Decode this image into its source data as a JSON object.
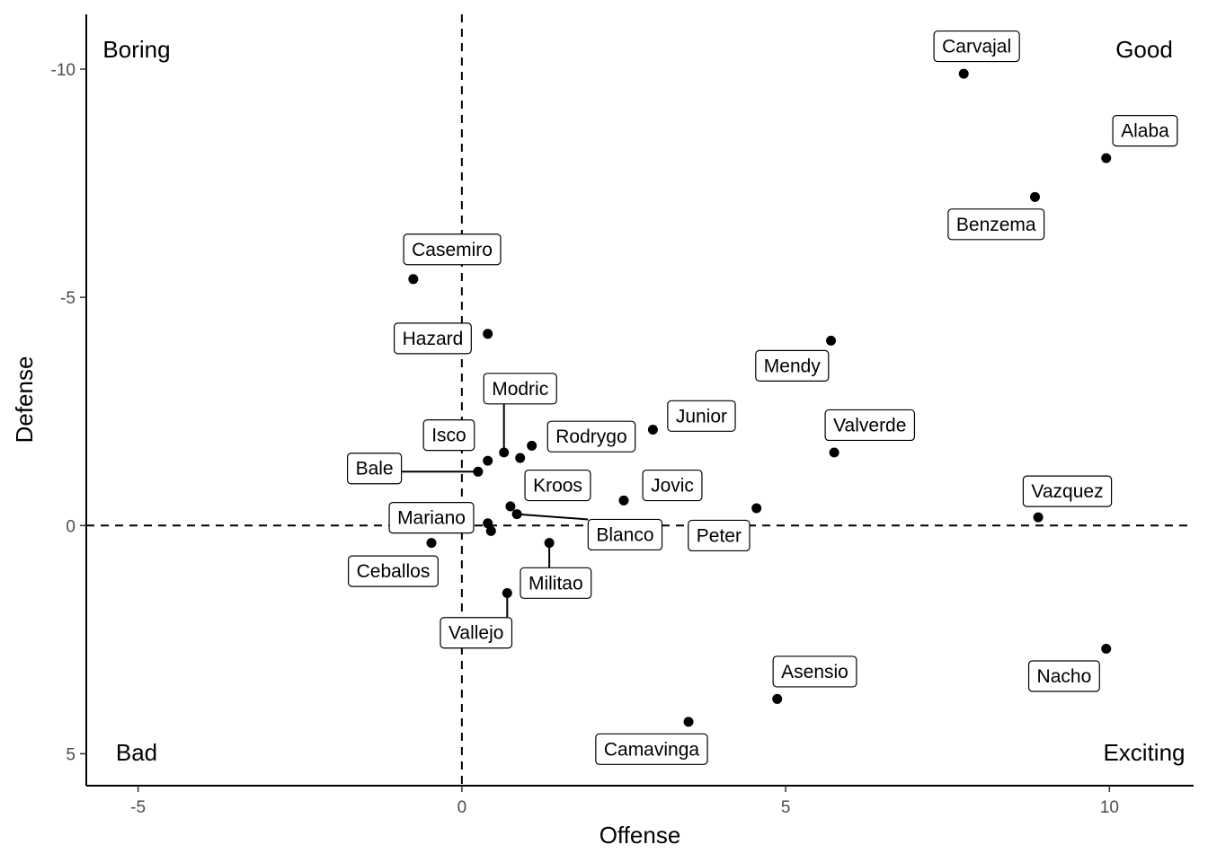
{
  "chart_data": {
    "type": "scatter",
    "xlabel": "Offense",
    "ylabel": "Defense",
    "xlim": [
      -5.8,
      11.3
    ],
    "ylim": [
      -11.2,
      5.7
    ],
    "y_reversed": true,
    "x_ticks": [
      -5,
      0,
      5,
      10
    ],
    "x_tick_labels": [
      "-5",
      "0",
      "5",
      "10"
    ],
    "y_ticks": [
      -10,
      -5,
      0,
      5
    ],
    "y_tick_labels": [
      "-10",
      "-5",
      "0",
      "5"
    ],
    "reference_lines": {
      "x": 0,
      "y": 0,
      "style": "dashed"
    },
    "grid": false,
    "quadrant_labels": {
      "top_left": "Boring",
      "top_right": "Good",
      "bottom_left": "Bad",
      "bottom_right": "Exciting"
    },
    "points": [
      {
        "name": "Carvajal",
        "x": 7.75,
        "y": -9.9,
        "label_x": 7.95,
        "label_y": -10.5
      },
      {
        "name": "Alaba",
        "x": 9.95,
        "y": -8.05,
        "label_x": 10.55,
        "label_y": -8.65
      },
      {
        "name": "Benzema",
        "x": 8.85,
        "y": -7.2,
        "label_x": 8.25,
        "label_y": -6.6
      },
      {
        "name": "Casemiro",
        "x": -0.75,
        "y": -5.4,
        "label_x": -0.15,
        "label_y": -6.05
      },
      {
        "name": "Hazard",
        "x": 0.4,
        "y": -4.2,
        "label_x": -0.45,
        "label_y": -4.1
      },
      {
        "name": "Mendy",
        "x": 5.7,
        "y": -4.05,
        "label_x": 5.1,
        "label_y": -3.5
      },
      {
        "name": "Modric",
        "x": 0.65,
        "y": -1.6,
        "label_x": 0.9,
        "label_y": -3.0,
        "leader": true
      },
      {
        "name": "Junior",
        "x": 2.95,
        "y": -2.1,
        "label_x": 3.7,
        "label_y": -2.4
      },
      {
        "name": "Rodrygo",
        "x": 1.08,
        "y": -1.75,
        "label_x": 2.0,
        "label_y": -1.95
      },
      {
        "name": "Valverde",
        "x": 5.75,
        "y": -1.6,
        "label_x": 6.3,
        "label_y": -2.2
      },
      {
        "name": "Isco",
        "x": 0.4,
        "y": -1.42,
        "label_x": -0.2,
        "label_y": -1.98
      },
      {
        "name": "Kroos",
        "x": 0.9,
        "y": -1.48,
        "label_x": 1.48,
        "label_y": -0.88
      },
      {
        "name": "Bale",
        "x": 0.25,
        "y": -1.18,
        "label_x": -1.35,
        "label_y": -1.25,
        "leader": true
      },
      {
        "name": "Jovic",
        "x": 2.5,
        "y": -0.55,
        "label_x": 3.25,
        "label_y": -0.88
      },
      {
        "name": "Vazquez",
        "x": 8.9,
        "y": -0.18,
        "label_x": 9.35,
        "label_y": -0.75
      },
      {
        "name": "Peter",
        "x": 4.55,
        "y": -0.38,
        "label_x": 3.97,
        "label_y": 0.22
      },
      {
        "name": "Blanco",
        "x": 0.85,
        "y": -0.25,
        "label_x": 2.52,
        "label_y": 0.2,
        "leader": true
      },
      {
        "name": "Kroos-point",
        "x": 0.75,
        "y": -0.42,
        "hidden_label": true
      },
      {
        "name": "Mariano",
        "x": 0.4,
        "y": -0.05,
        "label_x": -0.47,
        "label_y": -0.17
      },
      {
        "name": "Mariano-point",
        "x": 0.45,
        "y": 0.12,
        "hidden_label": true
      },
      {
        "name": "Ceballos",
        "x": -0.47,
        "y": 0.38,
        "label_x": -1.06,
        "label_y": 1.0
      },
      {
        "name": "Militao",
        "x": 1.35,
        "y": 0.38,
        "label_x": 1.45,
        "label_y": 1.26,
        "leader": true
      },
      {
        "name": "Vallejo",
        "x": 0.7,
        "y": 1.48,
        "label_x": 0.22,
        "label_y": 2.35,
        "leader": true
      },
      {
        "name": "Nacho",
        "x": 9.95,
        "y": 2.7,
        "label_x": 9.3,
        "label_y": 3.3
      },
      {
        "name": "Asensio",
        "x": 4.87,
        "y": 3.8,
        "label_x": 5.45,
        "label_y": 3.2
      },
      {
        "name": "Camavinga",
        "x": 3.5,
        "y": 4.3,
        "label_x": 2.93,
        "label_y": 4.9
      }
    ]
  }
}
